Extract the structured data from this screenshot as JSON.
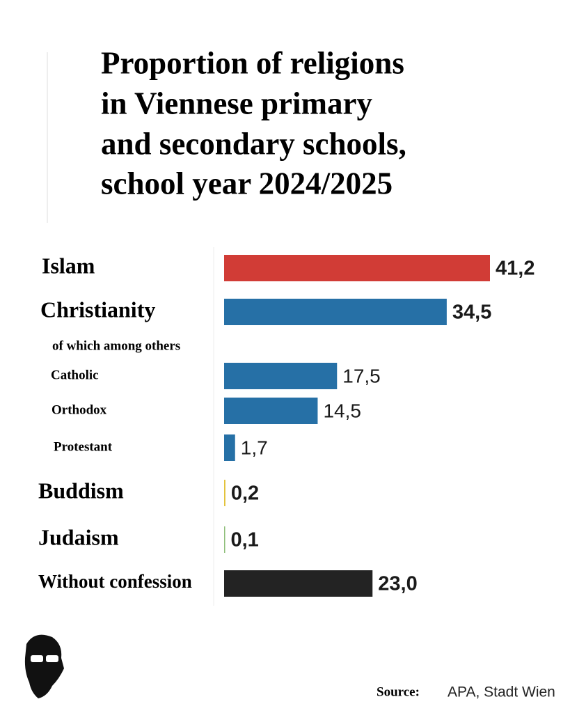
{
  "chart_data": {
    "type": "bar",
    "orientation": "horizontal",
    "title": [
      "Proportion of religions",
      "in Viennese primary",
      "and secondary schools,",
      "school year 2024/2025"
    ],
    "note": "of which among others",
    "categories": [
      "Islam",
      "Christianity",
      "Catholic",
      "Orthodox",
      "Protestant",
      "Buddism",
      "Judaism",
      "Without confession"
    ],
    "values": [
      41.2,
      34.5,
      17.5,
      14.5,
      1.7,
      0.2,
      0.1,
      23.0
    ],
    "value_labels": [
      "41,2",
      "34,5",
      "17,5",
      "14,5",
      "1,7",
      "0,2",
      "0,1",
      "23,0"
    ],
    "colors": [
      "#d13c36",
      "#2670a6",
      "#2670a6",
      "#2670a6",
      "#2670a6",
      "#e3c23a",
      "#8fbf7a",
      "#232323"
    ],
    "source_label": "Source:",
    "source": "APA, Stadt Wien"
  }
}
